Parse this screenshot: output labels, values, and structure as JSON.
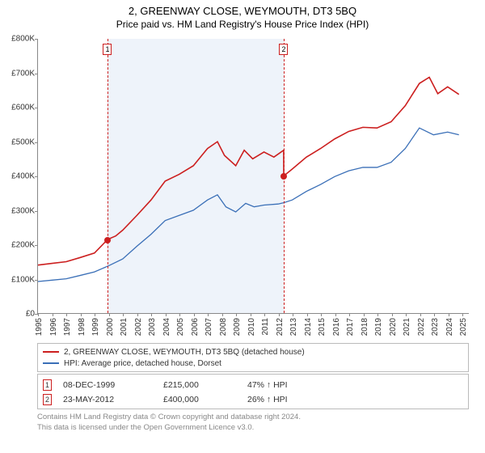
{
  "title": {
    "main": "2, GREENWAY CLOSE, WEYMOUTH, DT3 5BQ",
    "sub": "Price paid vs. HM Land Registry's House Price Index (HPI)"
  },
  "chart": {
    "type": "line",
    "background_color": "#ffffff",
    "axis_color": "#888888",
    "y_axis": {
      "min": 0,
      "max": 800000,
      "tick_step": 100000,
      "tick_labels": [
        "£0",
        "£100K",
        "£200K",
        "£300K",
        "£400K",
        "£500K",
        "£600K",
        "£700K",
        "£800K"
      ],
      "label_fontsize": 10,
      "label_color": "#333333"
    },
    "x_axis": {
      "min": 1995,
      "max": 2025.5,
      "ticks": [
        1995,
        1996,
        1997,
        1998,
        1999,
        2000,
        2001,
        2002,
        2003,
        2004,
        2005,
        2006,
        2007,
        2008,
        2009,
        2010,
        2011,
        2012,
        2013,
        2014,
        2015,
        2016,
        2017,
        2018,
        2019,
        2020,
        2021,
        2022,
        2023,
        2024,
        2025
      ],
      "label_fontsize": 10,
      "label_color": "#333333"
    },
    "shaded_band": {
      "from_year": 1999.94,
      "to_year": 2012.39,
      "fill_color": "#eef3fa"
    },
    "series": [
      {
        "name": "property",
        "label": "2, GREENWAY CLOSE, WEYMOUTH, DT3 5BQ (detached house)",
        "color": "#cc1f1f",
        "line_width": 1.6,
        "points": [
          [
            1995,
            140000
          ],
          [
            1996,
            145000
          ],
          [
            1997,
            150000
          ],
          [
            1998,
            162000
          ],
          [
            1999,
            175000
          ],
          [
            1999.94,
            215000
          ],
          [
            2000.5,
            225000
          ],
          [
            2001,
            242000
          ],
          [
            2002,
            285000
          ],
          [
            2003,
            330000
          ],
          [
            2004,
            385000
          ],
          [
            2005,
            405000
          ],
          [
            2006,
            430000
          ],
          [
            2007,
            480000
          ],
          [
            2007.7,
            500000
          ],
          [
            2008.2,
            460000
          ],
          [
            2009,
            430000
          ],
          [
            2009.6,
            475000
          ],
          [
            2010.2,
            450000
          ],
          [
            2011,
            470000
          ],
          [
            2011.7,
            455000
          ],
          [
            2012.39,
            475000
          ],
          [
            2012.4,
            400000
          ],
          [
            2013,
            420000
          ],
          [
            2014,
            455000
          ],
          [
            2015,
            480000
          ],
          [
            2016,
            508000
          ],
          [
            2017,
            530000
          ],
          [
            2018,
            542000
          ],
          [
            2019,
            540000
          ],
          [
            2020,
            558000
          ],
          [
            2021,
            605000
          ],
          [
            2022,
            670000
          ],
          [
            2022.7,
            688000
          ],
          [
            2023.3,
            640000
          ],
          [
            2024,
            660000
          ],
          [
            2024.8,
            638000
          ]
        ]
      },
      {
        "name": "hpi",
        "label": "HPI: Average price, detached house, Dorset",
        "color": "#3a6fb7",
        "line_width": 1.3,
        "points": [
          [
            1995,
            92000
          ],
          [
            1996,
            96000
          ],
          [
            1997,
            100000
          ],
          [
            1998,
            110000
          ],
          [
            1999,
            120000
          ],
          [
            2000,
            138000
          ],
          [
            2001,
            158000
          ],
          [
            2002,
            195000
          ],
          [
            2003,
            230000
          ],
          [
            2004,
            270000
          ],
          [
            2005,
            285000
          ],
          [
            2006,
            300000
          ],
          [
            2007,
            330000
          ],
          [
            2007.7,
            345000
          ],
          [
            2008.3,
            310000
          ],
          [
            2009,
            295000
          ],
          [
            2009.7,
            320000
          ],
          [
            2010.3,
            310000
          ],
          [
            2011,
            315000
          ],
          [
            2012,
            318000
          ],
          [
            2012.39,
            322000
          ],
          [
            2013,
            330000
          ],
          [
            2014,
            355000
          ],
          [
            2015,
            375000
          ],
          [
            2016,
            398000
          ],
          [
            2017,
            415000
          ],
          [
            2018,
            425000
          ],
          [
            2019,
            425000
          ],
          [
            2020,
            440000
          ],
          [
            2021,
            480000
          ],
          [
            2022,
            540000
          ],
          [
            2023,
            520000
          ],
          [
            2024,
            528000
          ],
          [
            2024.8,
            520000
          ]
        ]
      }
    ],
    "events": [
      {
        "n": "1",
        "year": 1999.94,
        "value": 215000,
        "date_label": "08-DEC-1999",
        "price_label": "£215,000",
        "delta_label": "47% ↑ HPI",
        "line_color": "#cc1f1f",
        "box_border": "#cc1f1f",
        "dot_color": "#cc1f1f"
      },
      {
        "n": "2",
        "year": 2012.39,
        "value": 400000,
        "date_label": "23-MAY-2012",
        "price_label": "£400,000",
        "delta_label": "26% ↑ HPI",
        "line_color": "#cc1f1f",
        "box_border": "#cc1f1f",
        "dot_color": "#cc1f1f"
      }
    ]
  },
  "legend": {
    "border_color": "#bbbbbb",
    "fontsize": 10
  },
  "events_table": {
    "border_color": "#bbbbbb"
  },
  "footnote": {
    "line1": "Contains HM Land Registry data © Crown copyright and database right 2024.",
    "line2": "This data is licensed under the Open Government Licence v3.0.",
    "color": "#888888"
  }
}
